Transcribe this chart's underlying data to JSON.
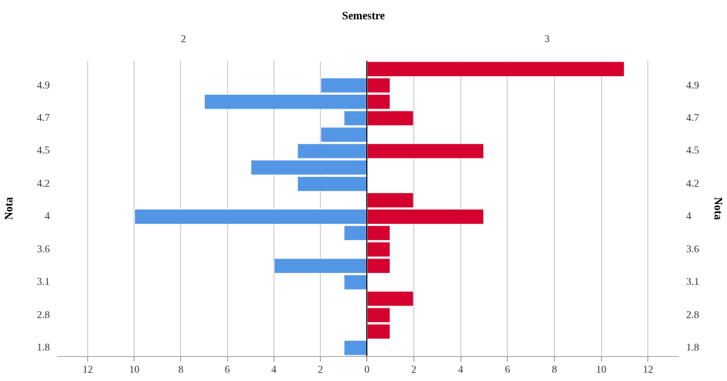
{
  "chart_data": [
    {
      "type": "bar",
      "title": "Semestre",
      "subtitle": "2",
      "ylabel": "Nota",
      "orientation": "horizontal",
      "categories": [
        null,
        "4.9",
        null,
        "4.7",
        null,
        "4.5",
        null,
        "4.2",
        null,
        "4",
        null,
        "3.6",
        null,
        "3.1",
        null,
        "2.8",
        null,
        "1.8"
      ],
      "values": [
        0,
        2,
        7,
        1,
        2,
        3,
        5,
        3,
        0,
        10,
        1,
        0,
        4,
        1,
        0,
        0,
        0,
        1
      ],
      "color": "#5496e6",
      "xlim": [
        13.3,
        0
      ],
      "xticks": [
        0,
        2,
        4,
        6,
        8,
        10,
        12
      ],
      "grid": "x",
      "legend": false
    },
    {
      "type": "bar",
      "subtitle": "3",
      "ylabel": "Nota",
      "orientation": "horizontal",
      "categories": [
        null,
        "4.9",
        null,
        "4.7",
        null,
        "4.5",
        null,
        "4.2",
        null,
        "4",
        null,
        "3.6",
        null,
        "3.1",
        null,
        "2.8",
        null,
        "1.8"
      ],
      "values": [
        11,
        1,
        1,
        2,
        0,
        5,
        0,
        0,
        2,
        5,
        1,
        1,
        1,
        0,
        2,
        1,
        1,
        0
      ],
      "color": "#d4002e",
      "xlim": [
        0,
        13.3
      ],
      "xticks": [
        {
          "value": 0,
          "label": null
        },
        2,
        4,
        6,
        8,
        10,
        12
      ],
      "grid": "x",
      "legend": false
    }
  ]
}
